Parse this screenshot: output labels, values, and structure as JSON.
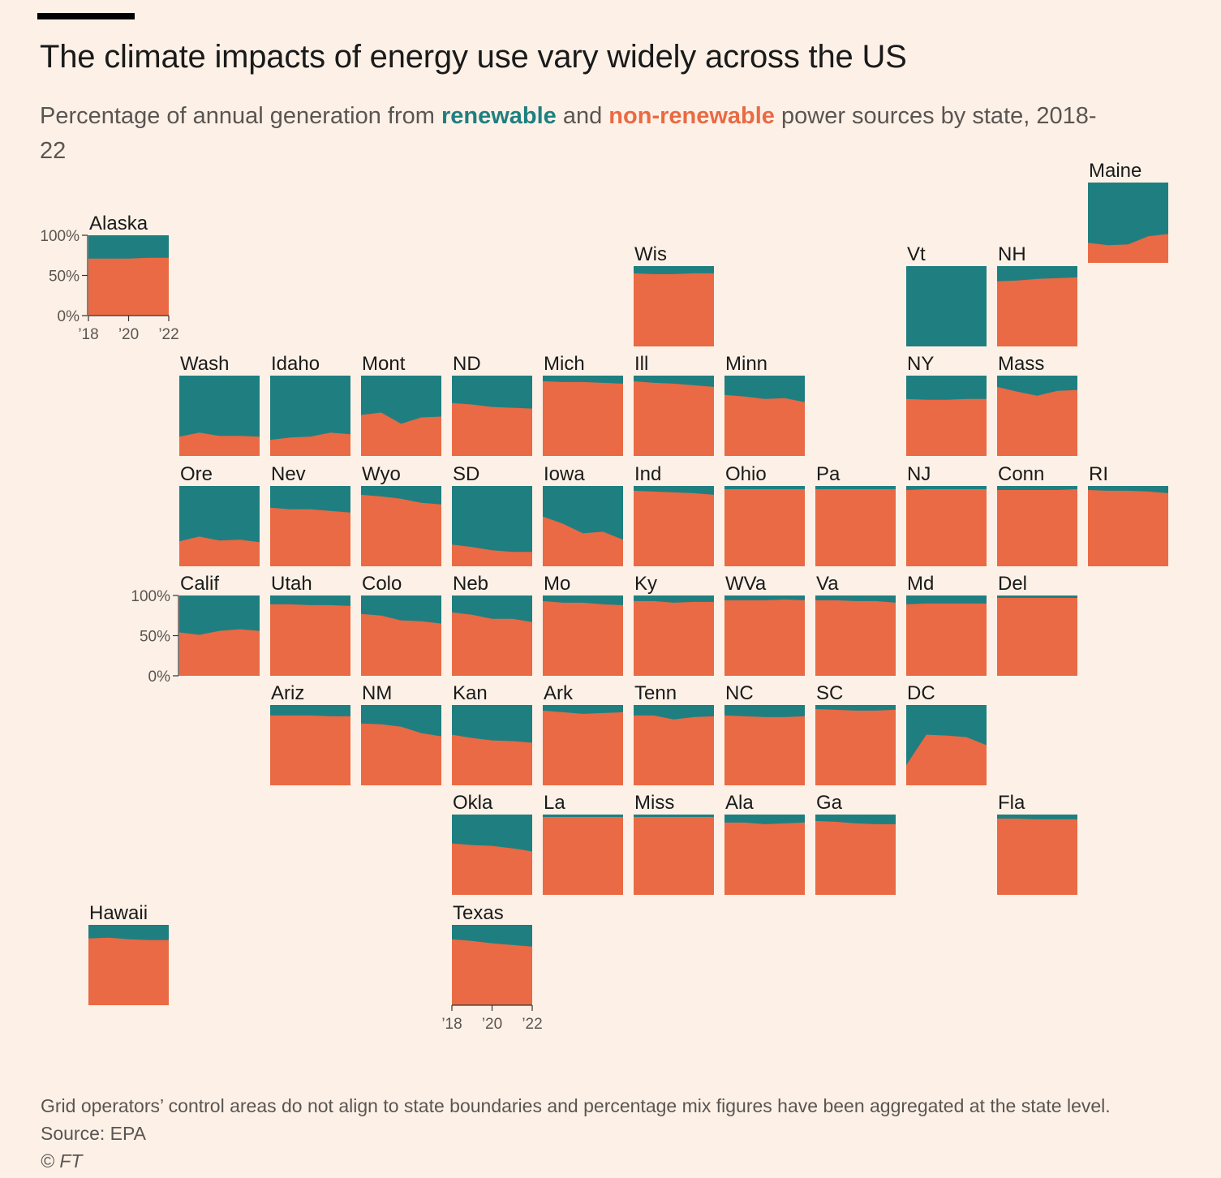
{
  "header": {
    "title": "The climate impacts of energy use vary widely across the US",
    "subtitle_pre": "Percentage of annual generation from ",
    "subtitle_renewable": "renewable",
    "subtitle_mid": " and ",
    "subtitle_nonrenewable": "non-renewable",
    "subtitle_post": " power sources by state, 2018-22"
  },
  "colors": {
    "renewable": "#1f7f80",
    "non_renewable": "#e96a44",
    "background": "#fdf1e7",
    "text": "#1a1a1a",
    "muted": "#5a5552"
  },
  "footer": {
    "note": "Grid operators’ control areas do not align to state boundaries and percentage mix figures have been aggregated at the state level.",
    "source": "Source: EPA",
    "credit": "© FT"
  },
  "chart_data": {
    "type": "area",
    "layout": "tile-grid-map",
    "title": "The climate impacts of energy use vary widely across the US",
    "x": [
      "2018",
      "2019",
      "2020",
      "2021",
      "2022"
    ],
    "x_tick_labels": [
      "’18",
      "’20",
      "’22"
    ],
    "y_tick_labels": [
      "100%",
      "50%",
      "0%"
    ],
    "ylim": [
      0,
      100
    ],
    "series_names": [
      "non-renewable",
      "renewable"
    ],
    "value_meaning": "non-renewable share (%) for 2018-2022; renewable share = 100 - value",
    "states": [
      {
        "label": "Alaska",
        "col": 0,
        "row": 0,
        "non_renewable": [
          71,
          71,
          71,
          72,
          72
        ]
      },
      {
        "label": "Maine",
        "col": 11,
        "row": -1,
        "non_renewable": [
          25,
          22,
          23,
          33,
          36
        ]
      },
      {
        "label": "Wis",
        "col": 6,
        "row": 0,
        "non_renewable": [
          91,
          90,
          90,
          91,
          91
        ]
      },
      {
        "label": "Vt",
        "col": 9,
        "row": 0,
        "non_renewable": [
          0,
          0,
          0,
          0,
          0
        ]
      },
      {
        "label": "NH",
        "col": 10,
        "row": 0,
        "non_renewable": [
          81,
          82,
          84,
          85,
          86
        ]
      },
      {
        "label": "Wash",
        "col": 1,
        "row": 1,
        "non_renewable": [
          24,
          29,
          25,
          25,
          24
        ]
      },
      {
        "label": "Idaho",
        "col": 2,
        "row": 1,
        "non_renewable": [
          20,
          23,
          24,
          29,
          27
        ]
      },
      {
        "label": "Mont",
        "col": 3,
        "row": 1,
        "non_renewable": [
          51,
          54,
          40,
          48,
          49
        ]
      },
      {
        "label": "ND",
        "col": 4,
        "row": 1,
        "non_renewable": [
          66,
          64,
          61,
          60,
          59
        ]
      },
      {
        "label": "Mich",
        "col": 5,
        "row": 1,
        "non_renewable": [
          93,
          92,
          92,
          91,
          90
        ]
      },
      {
        "label": "Ill",
        "col": 6,
        "row": 1,
        "non_renewable": [
          93,
          91,
          90,
          88,
          86
        ]
      },
      {
        "label": "Minn",
        "col": 7,
        "row": 1,
        "non_renewable": [
          76,
          74,
          71,
          72,
          67
        ]
      },
      {
        "label": "NY",
        "col": 9,
        "row": 1,
        "non_renewable": [
          71,
          70,
          70,
          71,
          71
        ]
      },
      {
        "label": "Mass",
        "col": 10,
        "row": 1,
        "non_renewable": [
          86,
          80,
          75,
          81,
          82
        ]
      },
      {
        "label": "Ore",
        "col": 1,
        "row": 2,
        "non_renewable": [
          31,
          37,
          32,
          33,
          30
        ]
      },
      {
        "label": "Nev",
        "col": 2,
        "row": 2,
        "non_renewable": [
          73,
          71,
          71,
          69,
          67
        ]
      },
      {
        "label": "Wyo",
        "col": 3,
        "row": 2,
        "non_renewable": [
          89,
          87,
          84,
          79,
          77
        ]
      },
      {
        "label": "SD",
        "col": 4,
        "row": 2,
        "non_renewable": [
          27,
          24,
          20,
          18,
          18
        ]
      },
      {
        "label": "Iowa",
        "col": 5,
        "row": 2,
        "non_renewable": [
          62,
          53,
          41,
          43,
          33
        ]
      },
      {
        "label": "Ind",
        "col": 6,
        "row": 2,
        "non_renewable": [
          94,
          93,
          92,
          91,
          89
        ]
      },
      {
        "label": "Ohio",
        "col": 7,
        "row": 2,
        "non_renewable": [
          96,
          96,
          96,
          96,
          96
        ]
      },
      {
        "label": "Pa",
        "col": 8,
        "row": 2,
        "non_renewable": [
          96,
          96,
          96,
          96,
          96
        ]
      },
      {
        "label": "NJ",
        "col": 9,
        "row": 2,
        "non_renewable": [
          95,
          96,
          96,
          96,
          96
        ]
      },
      {
        "label": "Conn",
        "col": 10,
        "row": 2,
        "non_renewable": [
          95,
          95,
          95,
          95,
          96
        ]
      },
      {
        "label": "RI",
        "col": 11,
        "row": 2,
        "non_renewable": [
          95,
          94,
          94,
          93,
          91
        ]
      },
      {
        "label": "Calif",
        "col": 1,
        "row": 3,
        "non_renewable": [
          54,
          51,
          56,
          58,
          56
        ]
      },
      {
        "label": "Utah",
        "col": 2,
        "row": 3,
        "non_renewable": [
          89,
          89,
          88,
          88,
          87
        ]
      },
      {
        "label": "Colo",
        "col": 3,
        "row": 3,
        "non_renewable": [
          77,
          75,
          69,
          68,
          65
        ]
      },
      {
        "label": "Neb",
        "col": 4,
        "row": 3,
        "non_renewable": [
          79,
          76,
          71,
          71,
          67
        ]
      },
      {
        "label": "Mo",
        "col": 5,
        "row": 3,
        "non_renewable": [
          93,
          91,
          91,
          89,
          88
        ]
      },
      {
        "label": "Ky",
        "col": 6,
        "row": 3,
        "non_renewable": [
          93,
          93,
          91,
          92,
          92
        ]
      },
      {
        "label": "WVa",
        "col": 7,
        "row": 3,
        "non_renewable": [
          94,
          94,
          94,
          95,
          94
        ]
      },
      {
        "label": "Va",
        "col": 8,
        "row": 3,
        "non_renewable": [
          94,
          94,
          93,
          93,
          91
        ]
      },
      {
        "label": "Md",
        "col": 9,
        "row": 3,
        "non_renewable": [
          89,
          90,
          90,
          90,
          90
        ]
      },
      {
        "label": "Del",
        "col": 10,
        "row": 3,
        "non_renewable": [
          97,
          97,
          97,
          97,
          97
        ]
      },
      {
        "label": "Ariz",
        "col": 2,
        "row": 4,
        "non_renewable": [
          87,
          87,
          87,
          86,
          86
        ]
      },
      {
        "label": "NM",
        "col": 3,
        "row": 4,
        "non_renewable": [
          77,
          76,
          73,
          65,
          61
        ]
      },
      {
        "label": "Kan",
        "col": 4,
        "row": 4,
        "non_renewable": [
          63,
          59,
          56,
          55,
          53
        ]
      },
      {
        "label": "Ark",
        "col": 5,
        "row": 4,
        "non_renewable": [
          93,
          91,
          89,
          90,
          91
        ]
      },
      {
        "label": "Tenn",
        "col": 6,
        "row": 4,
        "non_renewable": [
          87,
          87,
          82,
          85,
          86
        ]
      },
      {
        "label": "NC",
        "col": 7,
        "row": 4,
        "non_renewable": [
          87,
          86,
          85,
          85,
          86
        ]
      },
      {
        "label": "SC",
        "col": 8,
        "row": 4,
        "non_renewable": [
          95,
          94,
          93,
          93,
          94
        ]
      },
      {
        "label": "DC",
        "col": 9,
        "row": 4,
        "non_renewable": [
          25,
          63,
          62,
          60,
          50
        ]
      },
      {
        "label": "Okla",
        "col": 4,
        "row": 5,
        "non_renewable": [
          64,
          62,
          61,
          58,
          54
        ]
      },
      {
        "label": "La",
        "col": 5,
        "row": 5,
        "non_renewable": [
          97,
          97,
          97,
          97,
          97
        ]
      },
      {
        "label": "Miss",
        "col": 6,
        "row": 5,
        "non_renewable": [
          97,
          97,
          97,
          97,
          97
        ]
      },
      {
        "label": "Ala",
        "col": 7,
        "row": 5,
        "non_renewable": [
          90,
          90,
          88,
          89,
          90
        ]
      },
      {
        "label": "Ga",
        "col": 8,
        "row": 5,
        "non_renewable": [
          92,
          91,
          89,
          88,
          88
        ]
      },
      {
        "label": "Fla",
        "col": 10,
        "row": 5,
        "non_renewable": [
          95,
          95,
          94,
          94,
          94
        ]
      },
      {
        "label": "Hawaii",
        "col": 0,
        "row": 6,
        "non_renewable": [
          83,
          84,
          82,
          81,
          81
        ]
      },
      {
        "label": "Texas",
        "col": 4,
        "row": 6,
        "non_renewable": [
          82,
          80,
          77,
          75,
          73
        ]
      }
    ]
  }
}
